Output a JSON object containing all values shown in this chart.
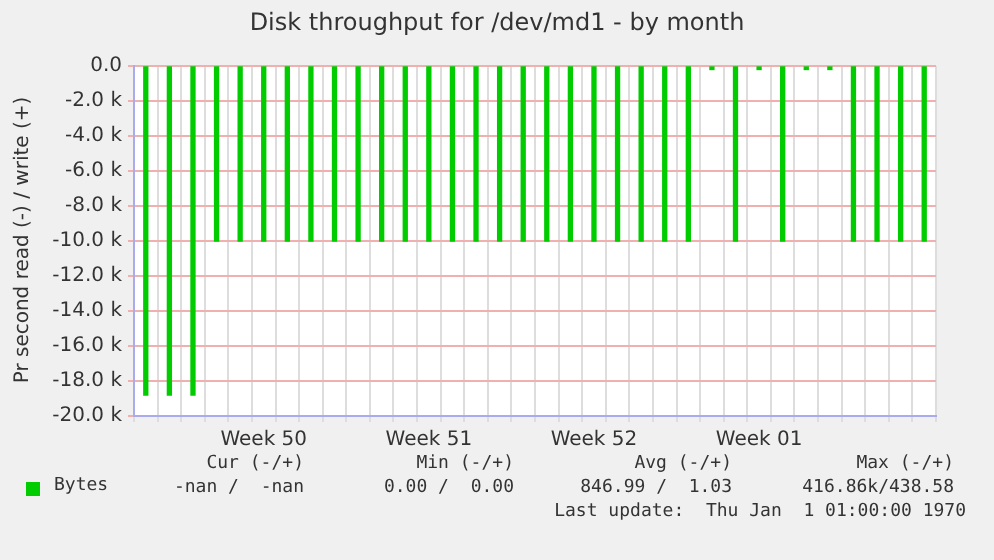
{
  "chart_data": {
    "type": "bar",
    "title": "Disk throughput for /dev/md1 - by month",
    "ylabel": "Pr second read (-) / write (+)",
    "categories": [
      null,
      null,
      null,
      null,
      null,
      "Week 50",
      null,
      null,
      null,
      null,
      null,
      null,
      "Week 51",
      null,
      null,
      null,
      null,
      null,
      null,
      "Week 52",
      null,
      null,
      null,
      null,
      null,
      null,
      "Week 01",
      null,
      null,
      null,
      null,
      null,
      null,
      null
    ],
    "series": [
      {
        "name": "Bytes",
        "color": "#00cc00",
        "values": [
          -18800,
          -18800,
          -18800,
          -10000,
          -10000,
          -10000,
          -10000,
          -10000,
          -10000,
          -10000,
          -10000,
          -10000,
          -10000,
          -10000,
          -10000,
          -10000,
          -10000,
          -10000,
          -10000,
          -10000,
          -10000,
          -10000,
          -10000,
          -10000,
          -200,
          -10000,
          -200,
          -10000,
          -200,
          -200,
          -10000,
          -10000,
          -10000,
          -10000
        ]
      }
    ],
    "ylim": [
      -20000,
      0
    ],
    "yticks": [
      {
        "value": 0,
        "label": "0.0"
      },
      {
        "value": -2000,
        "label": "-2.0 k"
      },
      {
        "value": -4000,
        "label": "-4.0 k"
      },
      {
        "value": -6000,
        "label": "-6.0 k"
      },
      {
        "value": -8000,
        "label": "-8.0 k"
      },
      {
        "value": -10000,
        "label": "-10.0 k"
      },
      {
        "value": -12000,
        "label": "-12.0 k"
      },
      {
        "value": -14000,
        "label": "-14.0 k"
      },
      {
        "value": -16000,
        "label": "-16.0 k"
      },
      {
        "value": -18000,
        "label": "-18.0 k"
      },
      {
        "value": -20000,
        "label": "-20.0 k"
      }
    ],
    "grid": true,
    "legend": "bottom left",
    "annotations": [
      "Cur (-/+)",
      "Min (-/+)",
      "Avg (-/+)",
      "Max (-/+)",
      "-nan /  -nan",
      "0.00 /  0.00",
      "846.99 /  1.03",
      "416.86k/438.58",
      "Last update:  Thu Jan  1 01:00:00 1970"
    ]
  }
}
